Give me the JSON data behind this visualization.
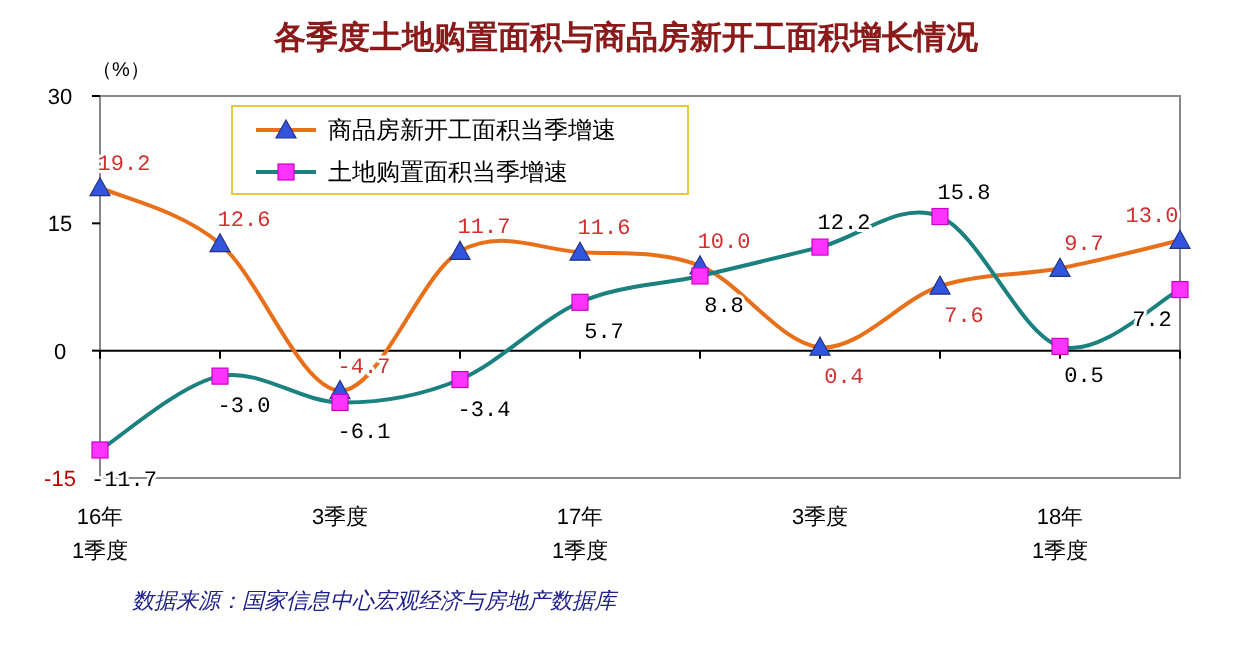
{
  "chart_data": {
    "type": "line",
    "title": "各季度土地购置面积与商品房新开工面积增长情况",
    "ylabel": "（%）",
    "categories": [
      "16年\n1季度",
      null,
      "3季度",
      null,
      "17年\n1季度",
      null,
      "3季度",
      null,
      "18年\n1季度",
      null
    ],
    "series": [
      {
        "name": "商品房新开工面积当季增速",
        "color": "#e8701a",
        "marker": "triangle",
        "values": [
          19.2,
          12.6,
          -4.7,
          11.7,
          11.6,
          10.0,
          0.4,
          7.6,
          9.7,
          13.0
        ],
        "value_labels": [
          "19.2",
          "12.6",
          "-4.7",
          "11.7",
          "11.6",
          "10.0",
          "0.4",
          "7.6",
          "9.7",
          "13.0"
        ]
      },
      {
        "name": "土地购置面积当季增速",
        "color": "#1a8080",
        "marker": "square",
        "values": [
          -11.7,
          -3.0,
          -6.1,
          -3.4,
          5.7,
          8.8,
          12.2,
          15.8,
          0.5,
          7.2
        ],
        "value_labels": [
          "-11.7",
          "-3.0",
          "-6.1",
          "-3.4",
          "5.7",
          "8.8",
          "12.2",
          "15.8",
          "0.5",
          "7.2"
        ]
      }
    ],
    "ylim": [
      -15,
      30
    ],
    "yticks": [
      -15,
      0,
      15,
      30
    ],
    "legend": "top left",
    "annotations": [
      "数据来源：国家信息中心宏观经济与房地产数据库"
    ]
  }
}
